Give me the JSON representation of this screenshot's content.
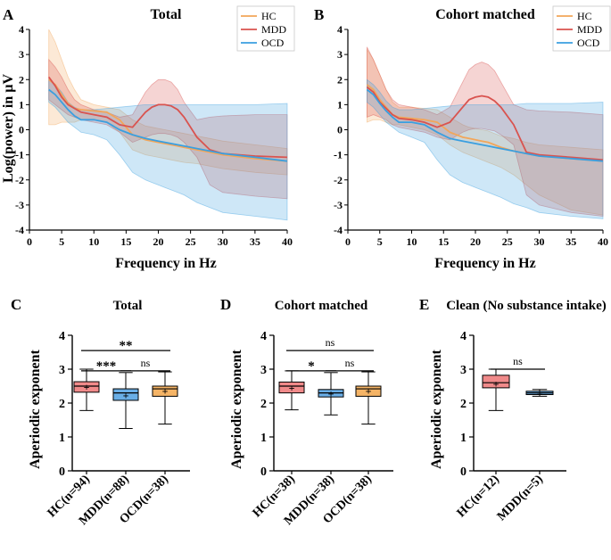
{
  "panels": [
    {
      "label": "A"
    },
    {
      "label": "B"
    },
    {
      "label": "C"
    },
    {
      "label": "D"
    },
    {
      "label": "E"
    }
  ],
  "series_colors": {
    "HC": "#f2a65a",
    "MDD": "#d9534f",
    "OCD": "#3a9fe0"
  },
  "box_colors": {
    "HC": "#f08a8a",
    "MDD": "#6aaee6",
    "OCD": "#f5b466"
  },
  "chart_data": [
    {
      "id": "A",
      "type": "line",
      "title": "Total",
      "xlabel": "Frequency in Hz",
      "ylabel": "Log(power) in µV",
      "xlim": [
        0,
        40
      ],
      "ylim": [
        -4,
        4
      ],
      "xticks": [
        0,
        5,
        10,
        15,
        20,
        25,
        30,
        35,
        40
      ],
      "yticks": [
        -4,
        -3,
        -2,
        -1,
        0,
        1,
        2,
        3,
        4
      ],
      "legend": "top-right",
      "x": [
        3,
        4,
        5,
        6,
        7,
        8,
        10,
        12,
        14,
        16,
        18,
        19,
        20,
        21,
        22,
        23,
        24,
        26,
        28,
        30,
        35,
        40
      ],
      "series": [
        {
          "name": "HC",
          "mean": [
            2.0,
            1.8,
            1.4,
            1.05,
            0.85,
            0.8,
            0.75,
            0.7,
            0.4,
            -0.2,
            -0.4,
            -0.45,
            -0.5,
            -0.55,
            -0.6,
            -0.65,
            -0.7,
            -0.8,
            -0.9,
            -1.0,
            -1.15,
            -1.25
          ],
          "upper": [
            4.0,
            3.5,
            2.8,
            2.1,
            1.6,
            1.2,
            1.0,
            0.9,
            0.8,
            0.4,
            0.15,
            0.1,
            0.05,
            0.0,
            -0.05,
            -0.1,
            -0.15,
            -0.25,
            -0.35,
            -0.45,
            -0.6,
            -0.75
          ],
          "lower": [
            0.2,
            0.2,
            0.3,
            0.3,
            0.3,
            0.4,
            0.4,
            0.3,
            -0.1,
            -0.8,
            -1.0,
            -1.05,
            -1.1,
            -1.15,
            -1.2,
            -1.25,
            -1.3,
            -1.35,
            -1.45,
            -1.55,
            -1.7,
            -1.8
          ]
        },
        {
          "name": "MDD",
          "mean": [
            2.1,
            1.75,
            1.3,
            1.0,
            0.85,
            0.7,
            0.6,
            0.5,
            0.2,
            0.1,
            0.7,
            0.9,
            1.0,
            1.0,
            0.95,
            0.8,
            0.5,
            -0.3,
            -0.8,
            -0.95,
            -1.05,
            -1.1
          ],
          "upper": [
            2.8,
            2.5,
            2.1,
            1.6,
            1.2,
            1.0,
            0.8,
            0.7,
            0.5,
            0.6,
            1.5,
            1.8,
            2.0,
            2.0,
            1.9,
            1.6,
            1.1,
            0.4,
            0.5,
            0.55,
            0.6,
            0.6
          ],
          "lower": [
            1.2,
            1.0,
            0.8,
            0.6,
            0.5,
            0.4,
            0.3,
            0.2,
            -0.1,
            -0.5,
            -0.3,
            -0.2,
            -0.15,
            -0.15,
            -0.2,
            -0.3,
            -0.5,
            -1.1,
            -2.2,
            -2.5,
            -2.65,
            -2.75
          ]
        },
        {
          "name": "OCD",
          "mean": [
            1.6,
            1.4,
            1.1,
            0.8,
            0.55,
            0.4,
            0.4,
            0.3,
            0.0,
            -0.2,
            -0.35,
            -0.4,
            -0.45,
            -0.5,
            -0.55,
            -0.6,
            -0.65,
            -0.75,
            -0.85,
            -0.95,
            -1.1,
            -1.25
          ],
          "upper": [
            2.0,
            1.8,
            1.5,
            1.1,
            0.9,
            0.8,
            0.8,
            0.85,
            0.9,
            0.95,
            1.0,
            1.0,
            1.0,
            1.0,
            1.0,
            1.0,
            1.0,
            1.0,
            1.0,
            1.0,
            1.0,
            1.05
          ],
          "lower": [
            1.1,
            0.9,
            0.6,
            0.3,
            0.1,
            -0.1,
            -0.2,
            -0.4,
            -1.0,
            -1.7,
            -2.0,
            -2.1,
            -2.2,
            -2.3,
            -2.4,
            -2.5,
            -2.6,
            -2.9,
            -3.1,
            -3.3,
            -3.45,
            -3.6
          ]
        }
      ]
    },
    {
      "id": "B",
      "type": "line",
      "title": "Cohort matched",
      "xlabel": "Frequency in Hz",
      "ylabel": "",
      "xlim": [
        0,
        40
      ],
      "ylim": [
        -4,
        4
      ],
      "xticks": [
        0,
        5,
        10,
        15,
        20,
        25,
        30,
        35,
        40
      ],
      "yticks": [
        -4,
        -3,
        -2,
        -1,
        0,
        1,
        2,
        3,
        4
      ],
      "legend": "top-right",
      "x": [
        3,
        4,
        5,
        6,
        7,
        8,
        10,
        12,
        14,
        16,
        18,
        19,
        20,
        21,
        22,
        23,
        24,
        26,
        28,
        30,
        35,
        40
      ],
      "series": [
        {
          "name": "HC",
          "mean": [
            1.8,
            1.6,
            1.2,
            0.9,
            0.6,
            0.5,
            0.45,
            0.4,
            0.3,
            -0.1,
            -0.3,
            -0.35,
            -0.4,
            -0.45,
            -0.5,
            -0.6,
            -0.7,
            -0.85,
            -0.95,
            -1.05,
            -1.15,
            -1.25
          ],
          "upper": [
            3.2,
            2.8,
            2.2,
            1.6,
            1.1,
            0.9,
            0.9,
            0.85,
            0.8,
            0.5,
            0.2,
            0.1,
            0.05,
            0.0,
            -0.05,
            -0.15,
            -0.25,
            -0.35,
            -0.5,
            -0.6,
            -0.7,
            -0.8
          ],
          "lower": [
            0.3,
            0.4,
            0.4,
            0.3,
            0.2,
            0.2,
            0.1,
            0.0,
            -0.2,
            -0.6,
            -0.9,
            -1.0,
            -1.1,
            -1.2,
            -1.3,
            -1.4,
            -1.5,
            -1.8,
            -2.2,
            -2.6,
            -3.2,
            -3.4
          ]
        },
        {
          "name": "MDD",
          "mean": [
            1.7,
            1.5,
            1.1,
            0.85,
            0.6,
            0.45,
            0.4,
            0.3,
            0.1,
            0.3,
            0.9,
            1.2,
            1.3,
            1.35,
            1.3,
            1.15,
            0.9,
            0.2,
            -0.9,
            -1.0,
            -1.1,
            -1.2
          ],
          "upper": [
            3.3,
            2.8,
            2.2,
            1.6,
            1.2,
            1.0,
            0.9,
            0.8,
            0.6,
            0.9,
            1.9,
            2.4,
            2.6,
            2.7,
            2.6,
            2.35,
            1.9,
            1.0,
            0.8,
            0.75,
            0.7,
            0.6
          ],
          "lower": [
            0.5,
            0.6,
            0.5,
            0.4,
            0.2,
            0.1,
            0.0,
            -0.1,
            -0.3,
            -0.4,
            -0.1,
            0.0,
            0.05,
            0.05,
            0.0,
            -0.05,
            -0.2,
            -0.6,
            -2.6,
            -3.0,
            -3.3,
            -3.45
          ]
        },
        {
          "name": "OCD",
          "mean": [
            1.6,
            1.4,
            1.05,
            0.75,
            0.5,
            0.3,
            0.3,
            0.2,
            -0.1,
            -0.35,
            -0.45,
            -0.5,
            -0.55,
            -0.6,
            -0.65,
            -0.7,
            -0.75,
            -0.85,
            -0.95,
            -1.05,
            -1.15,
            -1.25
          ],
          "upper": [
            2.0,
            1.8,
            1.5,
            1.15,
            0.9,
            0.8,
            0.8,
            0.85,
            0.9,
            0.95,
            1.0,
            1.0,
            1.0,
            1.0,
            1.0,
            1.0,
            1.0,
            1.0,
            1.05,
            1.05,
            1.05,
            1.1
          ],
          "lower": [
            1.1,
            0.9,
            0.6,
            0.3,
            0.1,
            -0.1,
            -0.3,
            -0.5,
            -1.2,
            -1.8,
            -2.1,
            -2.2,
            -2.3,
            -2.4,
            -2.5,
            -2.6,
            -2.7,
            -2.95,
            -3.1,
            -3.3,
            -3.45,
            -3.55
          ]
        }
      ]
    },
    {
      "id": "C",
      "type": "box",
      "title": "Total",
      "ylabel": "Aperiodic exponent",
      "ylim": [
        0,
        4
      ],
      "yticks": [
        0,
        1,
        2,
        3,
        4
      ],
      "groups": [
        {
          "name": "HC(n=94)",
          "color_key": "HC",
          "min": 1.78,
          "q1": 2.32,
          "median": 2.5,
          "q3": 2.63,
          "max": 3.0,
          "mean": 2.47
        },
        {
          "name": "MDD(n=88)",
          "color_key": "MDD",
          "min": 1.25,
          "q1": 2.08,
          "median": 2.3,
          "q3": 2.42,
          "max": 2.9,
          "mean": 2.22
        },
        {
          "name": "OCD(n=38)",
          "color_key": "OCD",
          "min": 1.38,
          "q1": 2.2,
          "median": 2.42,
          "q3": 2.5,
          "max": 2.92,
          "mean": 2.35
        }
      ],
      "comparisons": [
        {
          "a": 0,
          "b": 1,
          "label": "***",
          "y": 2.95
        },
        {
          "a": 1,
          "b": 2,
          "label": "ns",
          "y": 2.95
        },
        {
          "a": 0,
          "b": 2,
          "label": "**",
          "y": 3.55
        }
      ]
    },
    {
      "id": "D",
      "type": "box",
      "title": "Cohort matched",
      "ylabel": "Aperiodic exponent",
      "ylim": [
        0,
        4
      ],
      "yticks": [
        0,
        1,
        2,
        3,
        4
      ],
      "groups": [
        {
          "name": "HC(n=38)",
          "color_key": "HC",
          "min": 1.8,
          "q1": 2.3,
          "median": 2.5,
          "q3": 2.62,
          "max": 2.95,
          "mean": 2.45
        },
        {
          "name": "MDD(n=38)",
          "color_key": "MDD",
          "min": 1.65,
          "q1": 2.18,
          "median": 2.3,
          "q3": 2.4,
          "max": 2.9,
          "mean": 2.27
        },
        {
          "name": "OCD(n=38)",
          "color_key": "OCD",
          "min": 1.38,
          "q1": 2.2,
          "median": 2.42,
          "q3": 2.5,
          "max": 2.92,
          "mean": 2.35
        }
      ],
      "comparisons": [
        {
          "a": 0,
          "b": 1,
          "label": "*",
          "y": 2.95
        },
        {
          "a": 1,
          "b": 2,
          "label": "ns",
          "y": 2.95
        },
        {
          "a": 0,
          "b": 2,
          "label": "ns",
          "y": 3.55
        }
      ]
    },
    {
      "id": "E",
      "type": "box",
      "title": "Clean (No substance intake)",
      "ylabel": "Aperiodic exponent",
      "ylim": [
        0,
        4
      ],
      "yticks": [
        0,
        1,
        2,
        3,
        4
      ],
      "groups": [
        {
          "name": "HC(n=12)",
          "color_key": "HC",
          "min": 1.78,
          "q1": 2.45,
          "median": 2.6,
          "q3": 2.82,
          "max": 3.0,
          "mean": 2.57
        },
        {
          "name": "MDD(n=5)",
          "color_key": "MDD",
          "min": 2.2,
          "q1": 2.25,
          "median": 2.3,
          "q3": 2.35,
          "max": 2.4,
          "mean": 2.3
        }
      ],
      "comparisons": [
        {
          "a": 0,
          "b": 1,
          "label": "ns",
          "y": 3.0
        }
      ]
    }
  ]
}
